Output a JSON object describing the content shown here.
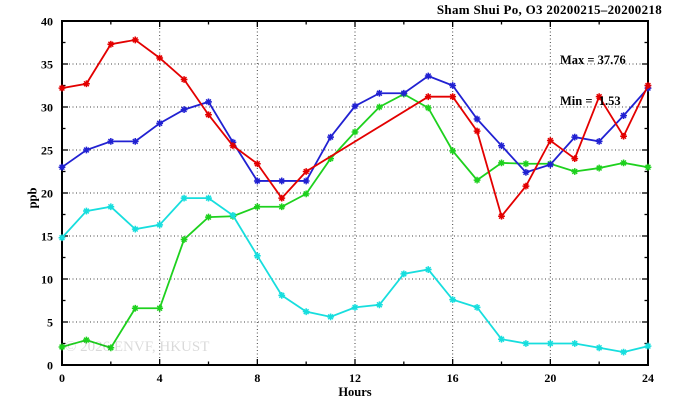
{
  "chart_data": {
    "type": "line",
    "title": "Sham Shui Po, O3 20200215–20200218",
    "xlabel": "Hours",
    "ylabel": "ppb",
    "xlim": [
      0,
      24
    ],
    "ylim": [
      0,
      40
    ],
    "x_major_ticks": [
      0,
      4,
      8,
      12,
      16,
      20,
      24
    ],
    "x_minor_ticks": [
      2,
      6,
      10,
      14,
      18,
      22
    ],
    "y_major_ticks": [
      0,
      5,
      10,
      15,
      20,
      25,
      30,
      35,
      40
    ],
    "y_minor_ticks": [
      2.5,
      7.5,
      12.5,
      17.5,
      22.5,
      27.5,
      32.5,
      37.5
    ],
    "x_tick_labels": [
      "0",
      "4",
      "8",
      "12",
      "16",
      "20",
      "24"
    ],
    "y_tick_labels": [
      "0",
      "5",
      "10",
      "15",
      "20",
      "25",
      "30",
      "35",
      "40"
    ],
    "grid": "dotted-at-major-ticks",
    "legend_position": "top-right-inside",
    "annotations": {
      "max_line": "Max = 37.76",
      "min_line": "Min =  1.53"
    },
    "stats": {
      "max": 37.76,
      "min": 1.53
    },
    "watermark": "© 2026 ENVF, HKUST",
    "x": [
      0,
      1,
      2,
      3,
      4,
      5,
      6,
      7,
      8,
      9,
      10,
      11,
      12,
      13,
      14,
      15,
      16,
      17,
      18,
      19,
      20,
      21,
      22,
      23,
      24
    ],
    "series": [
      {
        "name": "green",
        "color": "#1ed11e",
        "values": [
          2.1,
          2.9,
          2.0,
          6.6,
          6.6,
          14.6,
          17.2,
          17.3,
          18.4,
          18.4,
          19.9,
          24.0,
          27.1,
          30.0,
          31.5,
          29.9,
          24.9,
          21.5,
          23.5,
          23.4,
          23.4,
          22.5,
          22.9,
          23.5,
          23.0
        ]
      },
      {
        "name": "cyan",
        "color": "#17dede",
        "values": [
          14.8,
          17.9,
          18.4,
          15.8,
          16.3,
          19.4,
          19.4,
          17.4,
          12.7,
          8.1,
          6.2,
          5.6,
          6.7,
          7.0,
          10.6,
          11.1,
          7.6,
          6.7,
          3.0,
          2.5,
          2.5,
          2.5,
          2.0,
          1.5,
          2.2
        ]
      },
      {
        "name": "blue",
        "color": "#2121d2",
        "values": [
          23.0,
          25.0,
          26.0,
          26.0,
          28.1,
          29.7,
          30.6,
          25.9,
          21.4,
          21.4,
          21.4,
          26.5,
          30.1,
          31.6,
          31.6,
          33.6,
          32.5,
          28.6,
          25.5,
          22.4,
          23.3,
          26.5,
          26.0,
          29.0,
          32.2
        ]
      },
      {
        "name": "red",
        "color": "#e30000",
        "values": [
          32.2,
          32.7,
          37.3,
          37.8,
          35.7,
          33.2,
          29.1,
          25.5,
          23.4,
          19.4,
          22.5,
          null,
          null,
          null,
          null,
          31.2,
          31.2,
          27.2,
          17.3,
          20.8,
          26.1,
          24.0,
          31.2,
          26.6,
          32.5
        ]
      }
    ],
    "colors": {
      "background": "#ffffff",
      "axis_border": "#000000",
      "grid": "#444444",
      "watermark_gray": "#d9d9d9"
    }
  }
}
